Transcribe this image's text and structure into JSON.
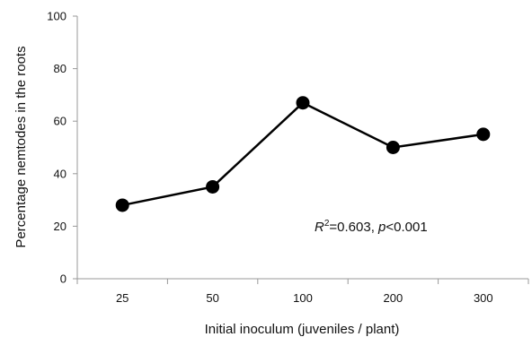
{
  "chart_data": {
    "type": "line",
    "title": "",
    "xlabel": "Initial inoculum (juveniles / plant)",
    "ylabel": "Percentage nemtodes in the roots",
    "categories": [
      "25",
      "50",
      "100",
      "200",
      "300"
    ],
    "series": [
      {
        "values": [
          28,
          35,
          67,
          50,
          55
        ]
      }
    ],
    "ylim": [
      0,
      100
    ],
    "yticks": [
      "0",
      "20",
      "40",
      "60",
      "80",
      "100"
    ],
    "grid": false,
    "legend": "none",
    "annotation": {
      "r_symbol": "R",
      "r_exp": "2",
      "r_value": "=0.603, ",
      "p_symbol": "p",
      "p_value": "<0.001"
    },
    "colors": {
      "line": "#000000",
      "marker": "#000000",
      "axis": "#999999"
    }
  }
}
